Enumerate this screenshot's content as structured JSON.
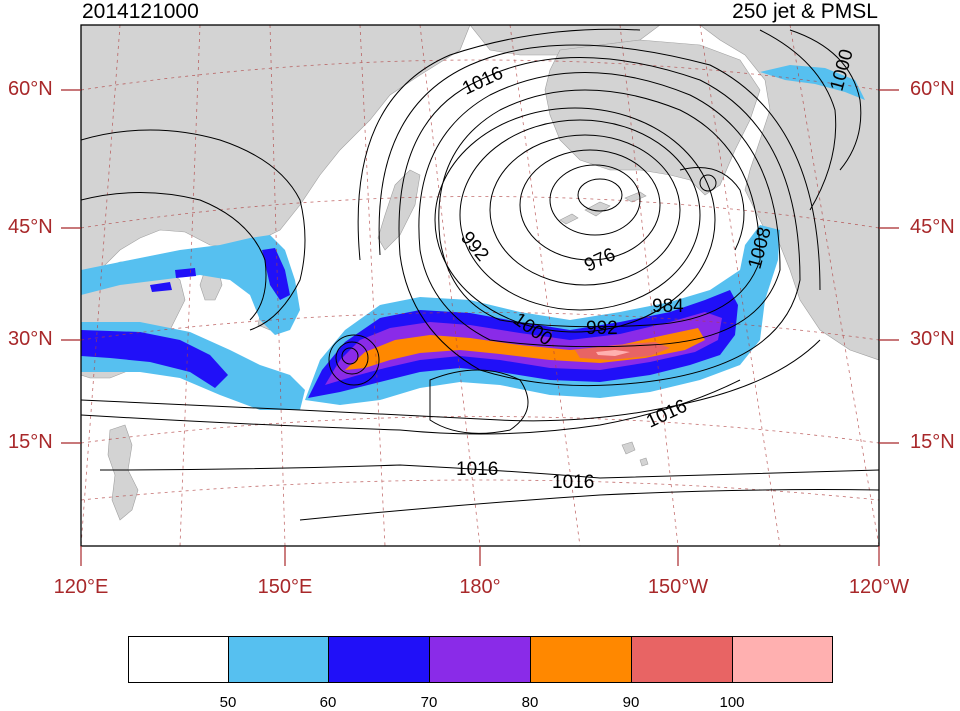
{
  "title": {
    "left": "2014121000",
    "right": "250 jet & PMSL"
  },
  "map": {
    "lon_labels": [
      "120°E",
      "150°E",
      "180°",
      "150°W",
      "120°W"
    ],
    "lat_labels": [
      "60°N",
      "45°N",
      "30°N",
      "15°N"
    ],
    "land_color": "#d3d3d3",
    "grid_color": "#b04040"
  },
  "pmsl_contour_labels": [
    "1016",
    "1000",
    "992",
    "976",
    "984",
    "992",
    "1000",
    "1008",
    "1016",
    "1016",
    "1016"
  ],
  "colorbar": {
    "levels": [
      "50",
      "60",
      "70",
      "80",
      "90",
      "100"
    ],
    "colors": [
      "#ffffff",
      "#56c0f0",
      "#2010f8",
      "#8a2be8",
      "#ff8800",
      "#e86464",
      "#ffb0b0"
    ],
    "units": "",
    "label": ""
  },
  "jet_shading_colors": {
    "c50": "#56c0f0",
    "c60": "#2010f8",
    "c70": "#8a2be8",
    "c80": "#ff8800",
    "c90": "#e86464",
    "c100": "#ffb0b0"
  }
}
